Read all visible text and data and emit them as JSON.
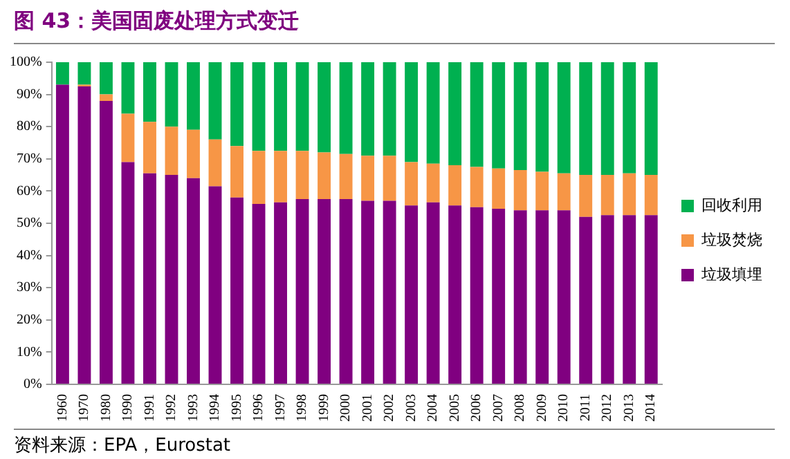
{
  "chart_data": {
    "type": "bar",
    "stacked": true,
    "title": "图 43：美国固废处理方式变迁",
    "categories": [
      "1960",
      "1970",
      "1980",
      "1990",
      "1991",
      "1992",
      "1993",
      "1994",
      "1995",
      "1996",
      "1997",
      "1998",
      "1999",
      "2000",
      "2001",
      "2002",
      "2003",
      "2004",
      "2005",
      "2006",
      "2007",
      "2008",
      "2009",
      "2010",
      "2011",
      "2012",
      "2013",
      "2014"
    ],
    "series": [
      {
        "name": "垃圾填埋",
        "color": "#800080",
        "values": [
          93,
          92.5,
          88,
          69,
          65.5,
          65,
          64,
          61.5,
          58,
          56,
          56.5,
          57.5,
          57.5,
          57.5,
          57,
          57,
          55.5,
          56.5,
          55.5,
          55,
          54.5,
          54,
          54,
          54,
          52,
          52.5,
          52.5,
          52.5
        ]
      },
      {
        "name": "垃圾焚烧",
        "color": "#f79646",
        "values": [
          0,
          0.5,
          2,
          15,
          16,
          15,
          15,
          14.5,
          16,
          16.5,
          16,
          15,
          14.5,
          14,
          14,
          14,
          13.5,
          12,
          12.5,
          12.5,
          12.5,
          12.5,
          12,
          11.5,
          13,
          12.5,
          13,
          12.5
        ]
      },
      {
        "name": "回收利用",
        "color": "#00b050",
        "values": [
          7,
          7,
          10,
          16,
          18.5,
          20,
          21,
          24,
          26,
          27.5,
          27.5,
          27.5,
          28,
          28.5,
          29,
          29,
          31,
          31.5,
          32,
          32.5,
          33,
          33.5,
          34,
          34.5,
          35,
          35,
          34.5,
          35
        ]
      }
    ],
    "ylim": [
      0,
      100
    ],
    "yticks": [
      {
        "value": 0,
        "label": "0%"
      },
      {
        "value": 10,
        "label": "10%"
      },
      {
        "value": 20,
        "label": "20%"
      },
      {
        "value": 30,
        "label": "30%"
      },
      {
        "value": 40,
        "label": "40%"
      },
      {
        "value": 50,
        "label": "50%"
      },
      {
        "value": 60,
        "label": "60%"
      },
      {
        "value": 70,
        "label": "70%"
      },
      {
        "value": 80,
        "label": "80%"
      },
      {
        "value": 90,
        "label": "90%"
      },
      {
        "value": 100,
        "label": "100%"
      }
    ],
    "grid": false,
    "legend": "right",
    "annotations": [
      "资料来源：EPA，Eurostat"
    ]
  }
}
